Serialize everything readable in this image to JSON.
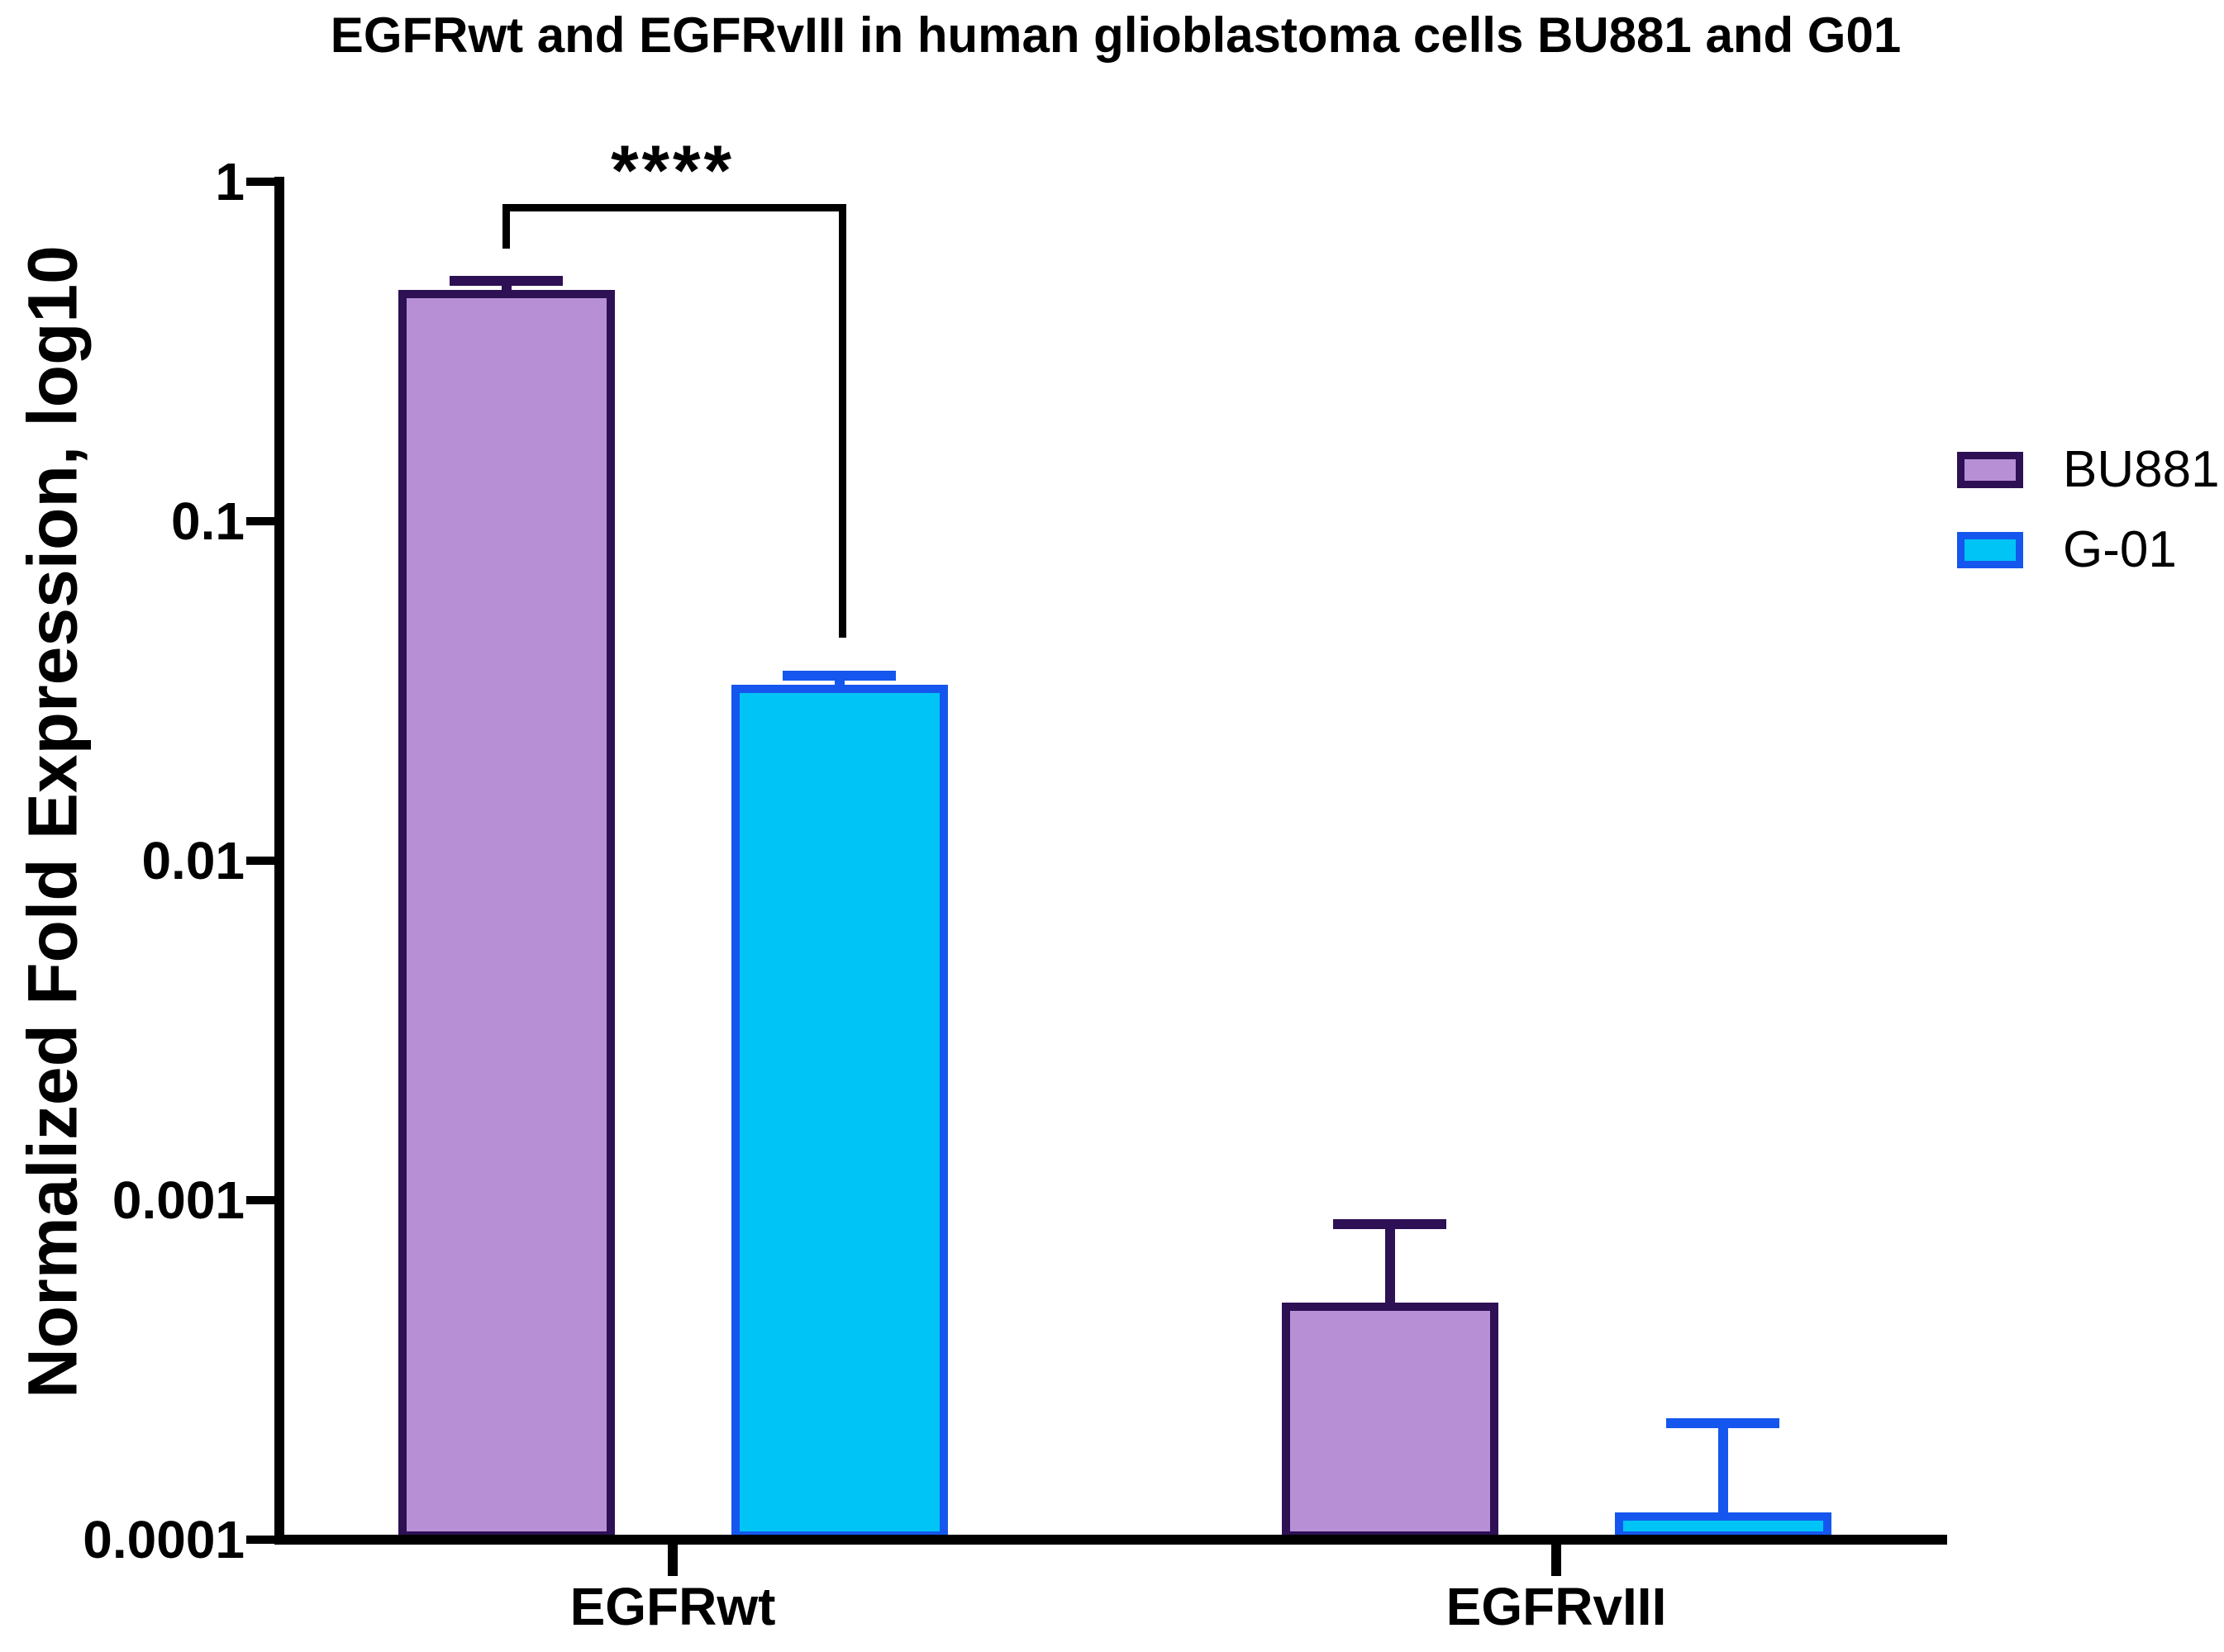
{
  "title": "EGFRwt and EGFRvIII in human glioblastoma cells BU881 and G01",
  "chart_data": {
    "type": "bar",
    "title": "EGFRwt and EGFRvIII in human glioblastoma cells BU881 and G01",
    "xlabel": "",
    "ylabel": "Normalized Fold Expression, log10",
    "yscale": "log10",
    "ylim": [
      0.0001,
      1
    ],
    "grid": false,
    "legend_position": "right",
    "categories": [
      "EGFRwt",
      "EGFRvIII"
    ],
    "yticks": [
      {
        "value": 1,
        "label": "1"
      },
      {
        "value": 0.1,
        "label": "0.1"
      },
      {
        "value": 0.01,
        "label": "0.01"
      },
      {
        "value": 0.001,
        "label": "0.001"
      },
      {
        "value": 0.0001,
        "label": "0.0001"
      }
    ],
    "series": [
      {
        "name": "BU881",
        "fill_color": "#b78fd4",
        "border_color": "#2e1054",
        "values": [
          0.48,
          0.0005
        ],
        "error_top": [
          0.51,
          0.00085
        ]
      },
      {
        "name": "G-01",
        "fill_color": "#00c4f6",
        "border_color": "#1557ee",
        "values": [
          0.033,
          0.00012
        ],
        "error_top": [
          0.035,
          0.00022
        ]
      }
    ],
    "significance": {
      "label": "****",
      "category": "EGFRwt",
      "between_series": [
        "BU881",
        "G-01"
      ]
    }
  }
}
